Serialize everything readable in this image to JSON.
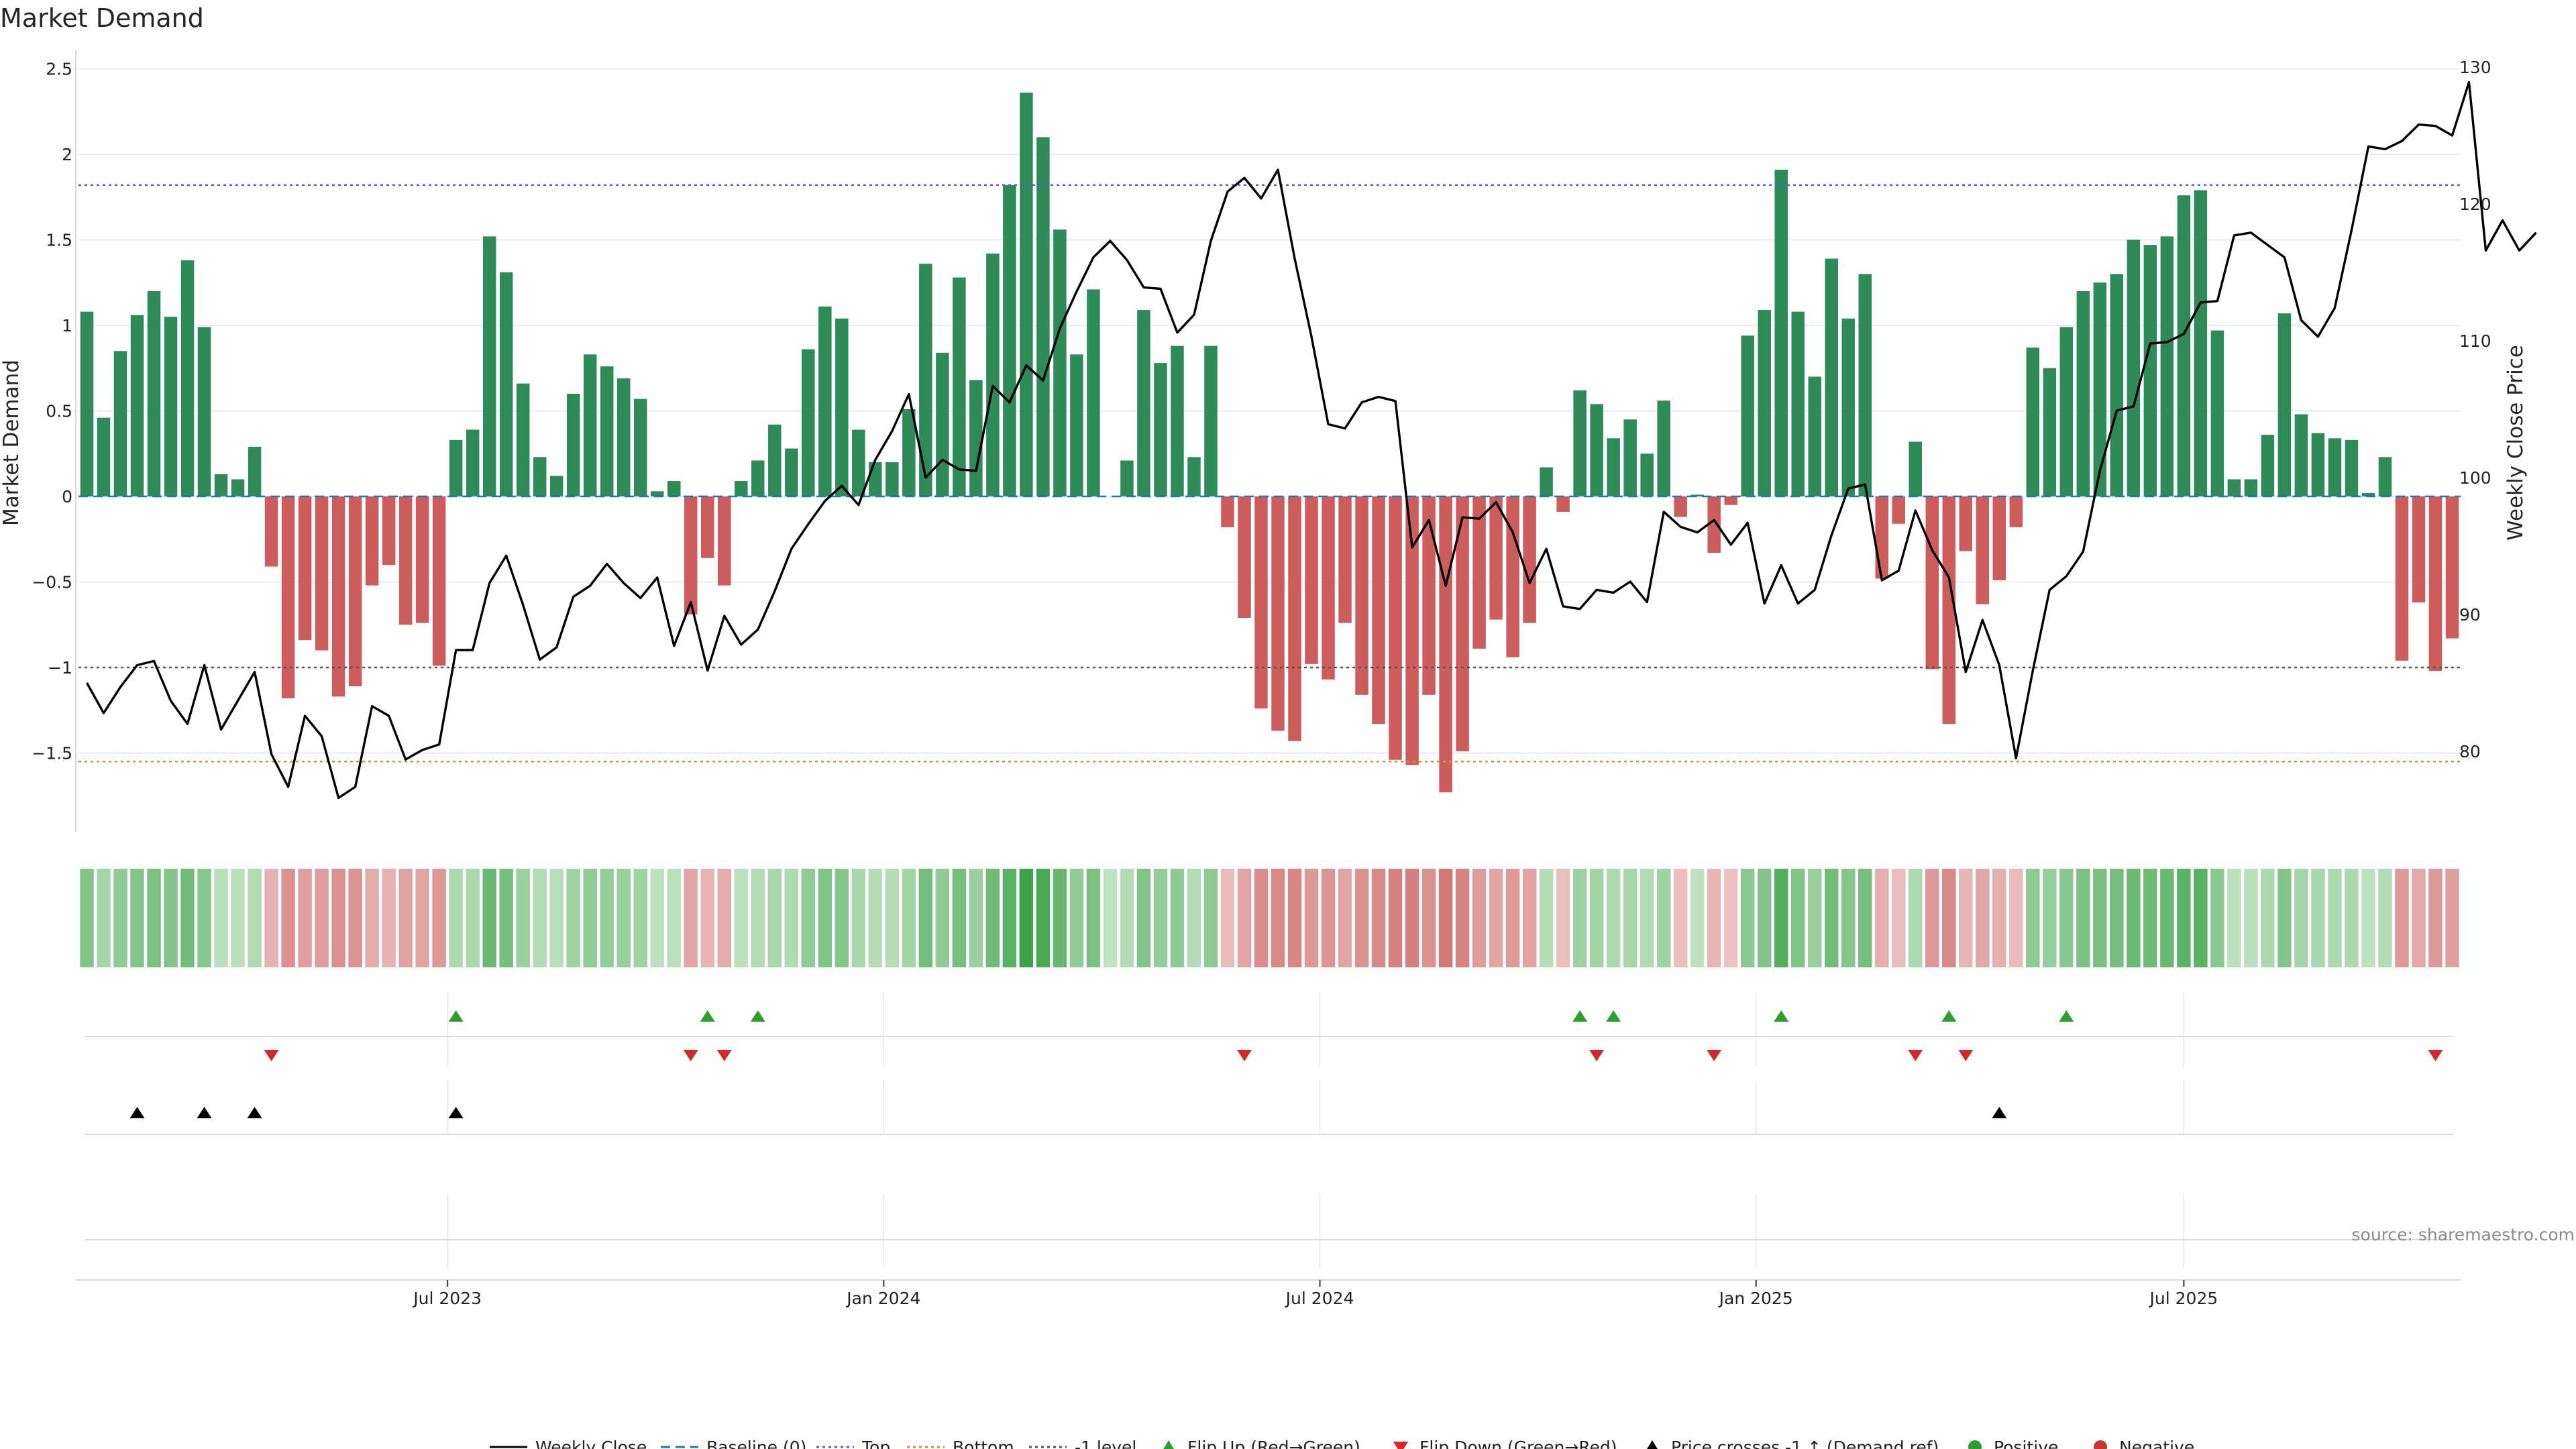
{
  "chart_data": {
    "type": "bar",
    "title": "Market Demand",
    "ylabel_left": "Market Demand",
    "ylabel_right": "Weekly Close Price",
    "ylim_left": [
      -1.95,
      2.5
    ],
    "ylim_right": [
      73,
      130
    ],
    "yticks_left": [
      2.5,
      2,
      1.5,
      1,
      0.5,
      0,
      -0.5,
      -1,
      -1.5
    ],
    "yticks_left_labels": [
      "2.5",
      "2",
      "1.5",
      "1",
      "0.5",
      "0",
      "−0.5",
      "−1",
      "−1.5"
    ],
    "yticks_right": [
      130,
      120,
      110,
      100,
      90,
      80
    ],
    "x_tick_labels": [
      {
        "label": "Jul 2023",
        "week": 21.5
      },
      {
        "label": "Jan 2024",
        "week": 47.5
      },
      {
        "label": "Jul 2024",
        "week": 73.5
      },
      {
        "label": "Jan 2025",
        "week": 99.5
      },
      {
        "label": "Jul 2025",
        "week": 125
      }
    ],
    "reference_lines": {
      "top": 1.82,
      "bottom": -1.55,
      "minus_one_level": -1.0,
      "baseline": 0
    },
    "colors": {
      "positive": "#2e8b57",
      "negative": "#cd5c5c",
      "price": "#000000",
      "top_line": "#5b5bd6",
      "bottom_line": "#e08a3a",
      "minus_one_line": "#555555",
      "baseline": "#1f77b4",
      "flip_up": "#2ca02c",
      "flip_down": "#d62728"
    },
    "demand": [
      1.08,
      0.46,
      0.85,
      1.06,
      1.2,
      1.05,
      1.38,
      0.99,
      0.13,
      0.1,
      0.29,
      -0.41,
      -1.18,
      -0.84,
      -0.9,
      -1.17,
      -1.11,
      -0.52,
      -0.4,
      -0.75,
      -0.74,
      -0.99,
      0.33,
      0.39,
      1.52,
      1.31,
      0.66,
      0.23,
      0.12,
      0.6,
      0.83,
      0.76,
      0.69,
      0.57,
      0.03,
      0.09,
      -0.69,
      -0.36,
      -0.52,
      0.09,
      0.21,
      0.42,
      0.28,
      0.86,
      1.11,
      1.04,
      0.39,
      0.2,
      0.2,
      0.51,
      1.36,
      0.84,
      1.28,
      0.68,
      1.42,
      1.82,
      2.36,
      2.1,
      1.56,
      0.83,
      1.21,
      0.0,
      0.21,
      1.09,
      0.78,
      0.88,
      0.23,
      0.88,
      -0.18,
      -0.71,
      -1.24,
      -1.37,
      -1.43,
      -0.98,
      -1.07,
      -0.74,
      -1.16,
      -1.33,
      -1.54,
      -1.57,
      -1.16,
      -1.73,
      -1.49,
      -0.89,
      -0.72,
      -0.94,
      -0.74,
      0.17,
      -0.09,
      0.62,
      0.54,
      0.34,
      0.45,
      0.25,
      0.56,
      -0.12,
      0.01,
      -0.33,
      -0.05,
      0.94,
      1.09,
      1.91,
      1.08,
      0.7,
      1.39,
      1.04,
      1.3,
      -0.48,
      -0.16,
      0.32,
      -1.01,
      -1.33,
      -0.32,
      -0.63,
      -0.49,
      -0.18,
      0.87,
      0.75,
      0.99,
      1.2,
      1.25,
      1.3,
      1.5,
      1.47,
      1.52,
      1.76,
      1.79,
      0.97,
      0.1,
      0.1,
      0.36,
      1.07,
      0.48,
      0.37,
      0.34,
      0.33,
      0.02,
      0.23,
      -0.96,
      -0.62,
      -1.02,
      -0.83
    ],
    "price": [
      85.0,
      82.8,
      84.7,
      86.3,
      86.6,
      83.7,
      82.0,
      86.3,
      81.6,
      83.7,
      85.8,
      79.8,
      77.4,
      82.6,
      81.1,
      76.6,
      77.4,
      83.3,
      82.6,
      79.4,
      80.1,
      80.5,
      87.4,
      87.4,
      92.3,
      94.3,
      90.7,
      86.7,
      87.6,
      91.3,
      92.1,
      93.7,
      92.3,
      91.2,
      92.7,
      87.7,
      90.9,
      85.9,
      89.9,
      87.8,
      88.9,
      91.7,
      94.8,
      96.6,
      98.3,
      99.4,
      98.0,
      101.3,
      103.4,
      106.1,
      100.0,
      101.3,
      100.6,
      100.5,
      106.7,
      105.5,
      108.2,
      107.1,
      110.9,
      113.6,
      116.1,
      117.3,
      115.9,
      113.9,
      113.8,
      110.6,
      111.9,
      117.3,
      120.9,
      121.9,
      120.4,
      122.5,
      116.0,
      110.3,
      103.9,
      103.6,
      105.5,
      105.9,
      105.6,
      94.9,
      96.9,
      92.1,
      97.1,
      97.0,
      98.2,
      96.0,
      92.3,
      94.8,
      90.6,
      90.4,
      91.8,
      91.6,
      92.4,
      90.9,
      97.5,
      96.4,
      96.0,
      96.9,
      95.1,
      96.7,
      90.8,
      93.6,
      90.8,
      91.8,
      95.8,
      99.2,
      99.5,
      92.5,
      93.2,
      97.6,
      94.7,
      92.7,
      85.8,
      89.6,
      86.3,
      79.5,
      85.9,
      91.8,
      92.8,
      94.6,
      100.5,
      104.9,
      105.2,
      109.8,
      109.9,
      110.5,
      112.8,
      112.9,
      117.7,
      117.9,
      117.0,
      116.1,
      111.5,
      110.3,
      112.4,
      118.1,
      124.2,
      124.0,
      124.6,
      125.8,
      125.7,
      125.0,
      128.9,
      116.6,
      118.8,
      116.6,
      117.9
    ],
    "flip_up_weeks": [
      22,
      37,
      40,
      89,
      91,
      101,
      111,
      118
    ],
    "flip_down_weeks": [
      11,
      36,
      38,
      69,
      90,
      97,
      109,
      112,
      140
    ],
    "price_cross_weeks": [
      3,
      7,
      10,
      22,
      114
    ],
    "legend": [
      {
        "label": "Weekly Close",
        "kind": "line",
        "color": "#000000"
      },
      {
        "label": "Baseline (0)",
        "kind": "dash",
        "color": "#1f77b4"
      },
      {
        "label": "Top",
        "kind": "dots",
        "color": "#5b5bd6"
      },
      {
        "label": "Bottom",
        "kind": "dots",
        "color": "#e08a3a"
      },
      {
        "label": "-1 level",
        "kind": "dots",
        "color": "#555555"
      },
      {
        "label": "Flip Up (Red→Green)",
        "kind": "tri-up",
        "color": "#2ca02c"
      },
      {
        "label": "Flip Down (Green→Red)",
        "kind": "tri-down",
        "color": "#d62728"
      },
      {
        "label": "Price crosses -1 ↑ (Demand ref)",
        "kind": "tri-up",
        "color": "#000000"
      },
      {
        "label": "Positive",
        "kind": "dot",
        "color": "#2ca02c"
      },
      {
        "label": "Negative",
        "kind": "dot",
        "color": "#c0392b"
      }
    ],
    "source": "source: sharemaestro.com"
  }
}
